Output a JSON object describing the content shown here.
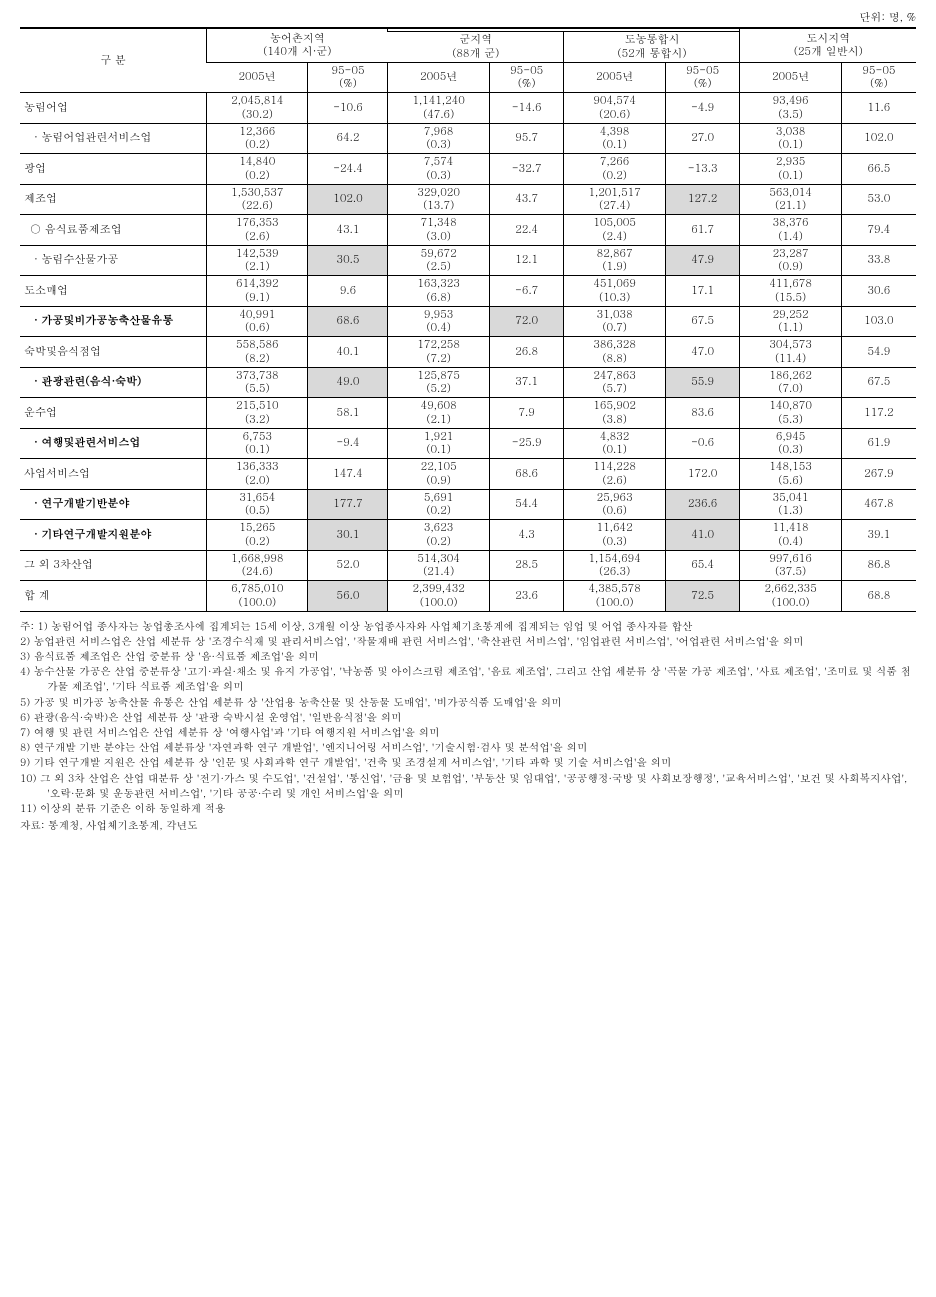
{
  "unit_label": "단위: 명, %",
  "header": {
    "col0": "구 분",
    "group1": "농어촌지역\n(140개 시·군)",
    "group2": "군지역\n(88개 군)",
    "group3": "도농통합시\n(52개 통합시)",
    "group4": "도시지역\n(25개 일반시)",
    "y2005": "2005년",
    "pct": "95-05\n(%)"
  },
  "rows": [
    {
      "label": "농림어업",
      "cells": [
        "2,045,814\n(30.2)",
        "-10.6",
        "1,141,240\n(47.6)",
        "-14.6",
        "904,574\n(20.6)",
        "-4.9",
        "93,496\n(3.5)",
        "11.6"
      ],
      "hl": []
    },
    {
      "label": "· 농림어업관련서비스업",
      "indent": 1,
      "cells": [
        "12,366\n(0.2)",
        "64.2",
        "7,968\n(0.3)",
        "95.7",
        "4,398\n(0.1)",
        "27.0",
        "3,038\n(0.1)",
        "102.0"
      ],
      "hl": []
    },
    {
      "label": "광업",
      "cells": [
        "14,840\n(0.2)",
        "-24.4",
        "7,574\n(0.3)",
        "-32.7",
        "7,266\n(0.2)",
        "-13.3",
        "2,935\n(0.1)",
        "66.5"
      ],
      "hl": []
    },
    {
      "label": "제조업",
      "cells": [
        "1,530,537\n(22.6)",
        "102.0",
        "329,020\n(13.7)",
        "43.7",
        "1,201,517\n(27.4)",
        "127.2",
        "563,014\n(21.1)",
        "53.0"
      ],
      "hl": [
        1,
        5
      ]
    },
    {
      "label": "○ 음식료품제조업",
      "indent": 2,
      "cells": [
        "176,353\n(2.6)",
        "43.1",
        "71,348\n(3.0)",
        "22.4",
        "105,005\n(2.4)",
        "61.7",
        "38,376\n(1.4)",
        "79.4"
      ],
      "hl": []
    },
    {
      "label": "· 농림수산물가공",
      "indent": 1,
      "cells": [
        "142,539\n(2.1)",
        "30.5",
        "59,672\n(2.5)",
        "12.1",
        "82,867\n(1.9)",
        "47.9",
        "23,287\n(0.9)",
        "33.8"
      ],
      "hl": [
        1,
        5
      ]
    },
    {
      "label": "도소매업",
      "cells": [
        "614,392\n(9.1)",
        "9.6",
        "163,323\n(6.8)",
        "-6.7",
        "451,069\n(10.3)",
        "17.1",
        "411,678\n(15.5)",
        "30.6"
      ],
      "hl": []
    },
    {
      "label": "· 가공및비가공농축산물유통",
      "indent": 1,
      "bold": true,
      "cells": [
        "40,991\n(0.6)",
        "68.6",
        "9,953\n(0.4)",
        "72.0",
        "31,038\n(0.7)",
        "67.5",
        "29,252\n(1.1)",
        "103.0"
      ],
      "hl": [
        1,
        3
      ]
    },
    {
      "label": "숙박및음식점업",
      "cells": [
        "558,586\n(8.2)",
        "40.1",
        "172,258\n(7.2)",
        "26.8",
        "386,328\n(8.8)",
        "47.0",
        "304,573\n(11.4)",
        "54.9"
      ],
      "hl": []
    },
    {
      "label": "· 관광관련(음식·숙박)",
      "indent": 1,
      "bold": true,
      "cells": [
        "373,738\n(5.5)",
        "49.0",
        "125,875\n(5.2)",
        "37.1",
        "247,863\n(5.7)",
        "55.9",
        "186,262\n(7.0)",
        "67.5"
      ],
      "hl": [
        1,
        5
      ]
    },
    {
      "label": "운수업",
      "cells": [
        "215,510\n(3.2)",
        "58.1",
        "49,608\n(2.1)",
        "7.9",
        "165,902\n(3.8)",
        "83.6",
        "140,870\n(5.3)",
        "117.2"
      ],
      "hl": []
    },
    {
      "label": "· 여행및관련서비스업",
      "indent": 1,
      "bold": true,
      "cells": [
        "6,753\n(0.1)",
        "-9.4",
        "1,921\n(0.1)",
        "-25.9",
        "4,832\n(0.1)",
        "-0.6",
        "6,945\n(0.3)",
        "61.9"
      ],
      "hl": []
    },
    {
      "label": "사업서비스업",
      "cells": [
        "136,333\n(2.0)",
        "147.4",
        "22,105\n(0.9)",
        "68.6",
        "114,228\n(2.6)",
        "172.0",
        "148,153\n(5.6)",
        "267.9"
      ],
      "hl": []
    },
    {
      "label": "· 연구개발기반분야",
      "indent": 1,
      "bold": true,
      "cells": [
        "31,654\n(0.5)",
        "177.7",
        "5,691\n(0.2)",
        "54.4",
        "25,963\n(0.6)",
        "236.6",
        "35,041\n(1.3)",
        "467.8"
      ],
      "hl": [
        1,
        5
      ]
    },
    {
      "label": "· 기타연구개발지원분야",
      "indent": 1,
      "bold": true,
      "cells": [
        "15,265\n(0.2)",
        "30.1",
        "3,623\n(0.2)",
        "4.3",
        "11,642\n(0.3)",
        "41.0",
        "11,418\n(0.4)",
        "39.1"
      ],
      "hl": [
        1,
        5
      ]
    },
    {
      "label": "그 외 3차산업",
      "cells": [
        "1,668,998\n(24.6)",
        "52.0",
        "514,304\n(21.4)",
        "28.5",
        "1,154,694\n(26.3)",
        "65.4",
        "997,616\n(37.5)",
        "86.8"
      ],
      "hl": []
    },
    {
      "label": "합 계",
      "cells": [
        "6,785,010\n(100.0)",
        "56.0",
        "2,399,432\n(100.0)",
        "23.6",
        "4,385,578\n(100.0)",
        "72.5",
        "2,662,335\n(100.0)",
        "68.8"
      ],
      "hl": [
        1,
        5
      ]
    }
  ],
  "notes": [
    "주: 1) 농림어업 종사자는 농업총조사에 집계되는 15세 이상, 3개월 이상 농업종사자와 사업체기초통계에 집계되는 임업 및 어업 종사자를 합산",
    "2) 농업관련 서비스업은 산업 세분류 상 '조경수식재 및 관리서비스업', '작물재배 관련 서비스업', '축산관련 서비스업', '임업관련 서비스업', '어업관련 서비스업'을 의미",
    "3) 음식료품 제조업은 산업 중분류 상 '음·식료품 제조업'을 의미",
    "4) 농수산물 가공은 산업 중분류상 '고기·과실·채소 및 유지 가공업', '낙농품 및 아이스크림 제조업', '음료 제조업', 그리고 산업 세분류 상 '곡물 가공 제조업', '사료 제조업', '조미료 및 식품 첨가물 제조업', '기타 식료품 제조업'을 의미",
    "5) 가공 및 비가공 농축산물 유통은 산업 세분류 상 '산업용 농축산물 및 산동물 도매업', '비가공식품 도매업'을 의미",
    "6) 관광(음식·숙박)은 산업 세분류 상 '관광 숙박시설 운영업', '일반음식점'을 의미",
    "7) 여행 및 관련 서비스업은 산업 세분류 상 '여행사업'과 '기타 여행지원 서비스업'을 의미",
    "8) 연구개발 기반 분야는 산업 세분류상 '자연과학 연구 개발업', '엔지니어링 서비스업', '기술시험·검사 및 분석업'을 의미",
    "9) 기타 연구개발 지원은 산업 세분류 상 '인문 및 사회과학 연구 개발업', '건축 및 조경설계 서비스업', '기타 과학 및 기술 서비스업'을 의미",
    "10) 그 외 3차 산업은 산업 대분류 상 '전기·가스 및 수도업', '건설업', '통신업', '금융 및 보험업', '부동산 및 임대업', '공공행정·국방 및 사회보장행정', '교육서비스업', '보건 및 사회복지사업', '오락·문화 및 운동관련 서비스업', '기타 공공·수리 및 개인 서비스업'을 의미",
    "11) 이상의 분류 기준은 이하 동일하게 적용"
  ],
  "source": "자료: 통계청, 사업체기초통계, 각년도",
  "highlight_color": "#d9d9d9"
}
